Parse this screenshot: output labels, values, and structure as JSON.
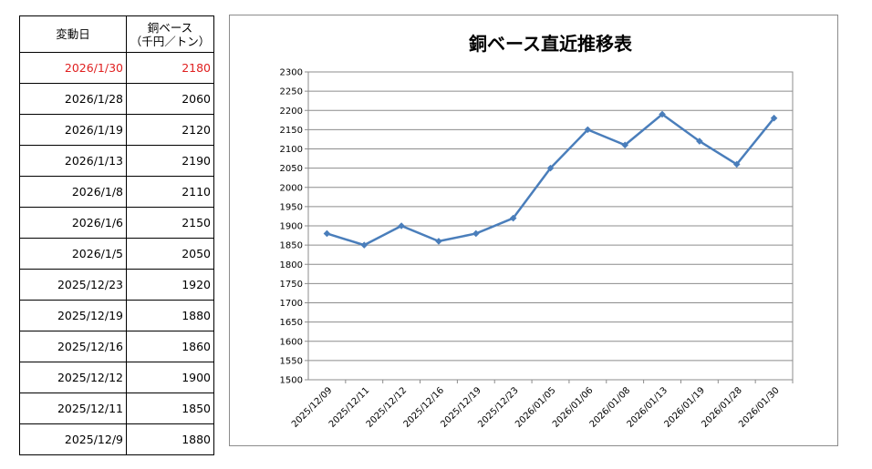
{
  "table": {
    "headers": [
      "変動日",
      "銅ベース\n（千円／トン）"
    ],
    "rows": [
      {
        "date": "2026/1/30",
        "value": "2180"
      },
      {
        "date": "2026/1/28",
        "value": "2060"
      },
      {
        "date": "2026/1/19",
        "value": "2120"
      },
      {
        "date": "2026/1/13",
        "value": "2190"
      },
      {
        "date": "2026/1/8",
        "value": "2110"
      },
      {
        "date": "2026/1/6",
        "value": "2150"
      },
      {
        "date": "2026/1/5",
        "value": "2050"
      },
      {
        "date": "2025/12/23",
        "value": "1920"
      },
      {
        "date": "2025/12/19",
        "value": "1880"
      },
      {
        "date": "2025/12/16",
        "value": "1860"
      },
      {
        "date": "2025/12/12",
        "value": "1900"
      },
      {
        "date": "2025/12/11",
        "value": "1850"
      },
      {
        "date": "2025/12/9",
        "value": "1880"
      }
    ],
    "highlight_color": "#e02020"
  },
  "chart_data": {
    "type": "line",
    "title": "銅ベース直近推移表",
    "xlabel": "",
    "ylabel": "",
    "categories": [
      "2025/12/09",
      "2025/12/11",
      "2025/12/12",
      "2025/12/16",
      "2025/12/19",
      "2025/12/23",
      "2026/01/05",
      "2026/01/06",
      "2026/01/08",
      "2026/01/13",
      "2026/01/19",
      "2026/01/28",
      "2026/01/30"
    ],
    "values": [
      1880,
      1850,
      1900,
      1860,
      1880,
      1920,
      2050,
      2150,
      2110,
      2190,
      2120,
      2060,
      2180
    ],
    "ylim": [
      1500,
      2300
    ],
    "ystep": 50,
    "grid": true,
    "legend": "none",
    "line_color": "#4a7ebb"
  }
}
